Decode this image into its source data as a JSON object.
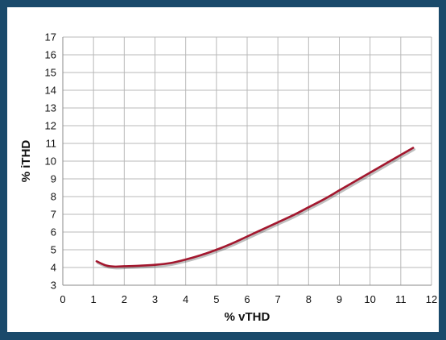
{
  "chart_data": {
    "type": "line",
    "title": "",
    "xlabel": "% vTHD",
    "ylabel": "% iTHD",
    "xlim": [
      0,
      12
    ],
    "ylim": [
      3,
      17
    ],
    "xticks": [
      "0",
      "1",
      "2",
      "3",
      "4",
      "5",
      "6",
      "7",
      "8",
      "9",
      "10",
      "11",
      "12"
    ],
    "yticks": [
      "3",
      "4",
      "5",
      "6",
      "7",
      "8",
      "9",
      "10",
      "11",
      "12",
      "13",
      "14",
      "15",
      "16",
      "17"
    ],
    "grid": true,
    "legend": "none",
    "series": [
      {
        "color": "#a3172e",
        "x": [
          1.1,
          1.4,
          1.7,
          2.0,
          2.5,
          3.0,
          3.5,
          4.0,
          4.5,
          5.0,
          5.5,
          6.0,
          6.5,
          7.0,
          7.5,
          8.0,
          8.5,
          9.0,
          9.5,
          10.0,
          10.5,
          11.0,
          11.4
        ],
        "y": [
          4.35,
          4.12,
          4.05,
          4.07,
          4.1,
          4.15,
          4.25,
          4.45,
          4.7,
          5.0,
          5.35,
          5.75,
          6.15,
          6.55,
          6.95,
          7.4,
          7.85,
          8.35,
          8.85,
          9.35,
          9.85,
          10.35,
          10.75
        ]
      }
    ]
  }
}
